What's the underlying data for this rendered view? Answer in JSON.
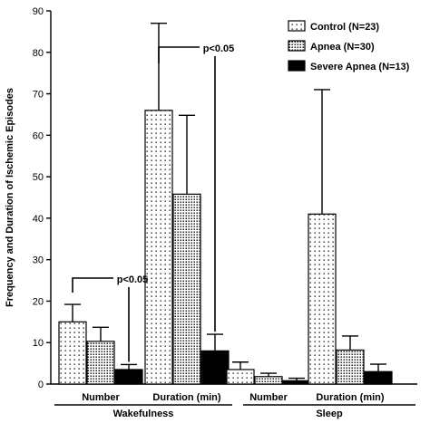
{
  "chart_data": {
    "type": "bar",
    "ylabel": "Frequency and Duration of Ischemic Episodes",
    "ylim": [
      0,
      90
    ],
    "yticks": [
      0,
      10,
      20,
      30,
      40,
      50,
      60,
      70,
      80,
      90
    ],
    "categories": [
      "Number",
      "Duration (min)",
      "Number",
      "Duration (min)"
    ],
    "groups": [
      {
        "label": "Wakefulness",
        "categories": [
          0,
          1
        ]
      },
      {
        "label": "Sleep",
        "categories": [
          2,
          3
        ]
      }
    ],
    "series": [
      {
        "name": "Control (N=23)",
        "values": [
          15,
          66,
          3.5,
          41
        ],
        "errors": [
          4.2,
          21,
          1.8,
          30
        ],
        "pattern": "dots"
      },
      {
        "name": "Apnea (N=30)",
        "values": [
          10.3,
          45.8,
          1.8,
          8.2
        ],
        "errors": [
          3.4,
          19,
          0.8,
          3.4
        ],
        "pattern": "dense"
      },
      {
        "name": "Severe Apnea (N=13)",
        "values": [
          3.5,
          8,
          0.8,
          3
        ],
        "errors": [
          1.2,
          4,
          0.6,
          1.8
        ],
        "pattern": "solid"
      }
    ],
    "annotations": [
      {
        "text": "p<0.05",
        "category": 0,
        "from_series": 0,
        "to_series": 2
      },
      {
        "text": "p<0.05",
        "category": 1,
        "from_series": 0,
        "to_series": 2
      }
    ],
    "legend_position": "top-right",
    "colors": {
      "control": "#ffffff",
      "apnea": "#d9d9d9",
      "severe": "#000000"
    }
  }
}
